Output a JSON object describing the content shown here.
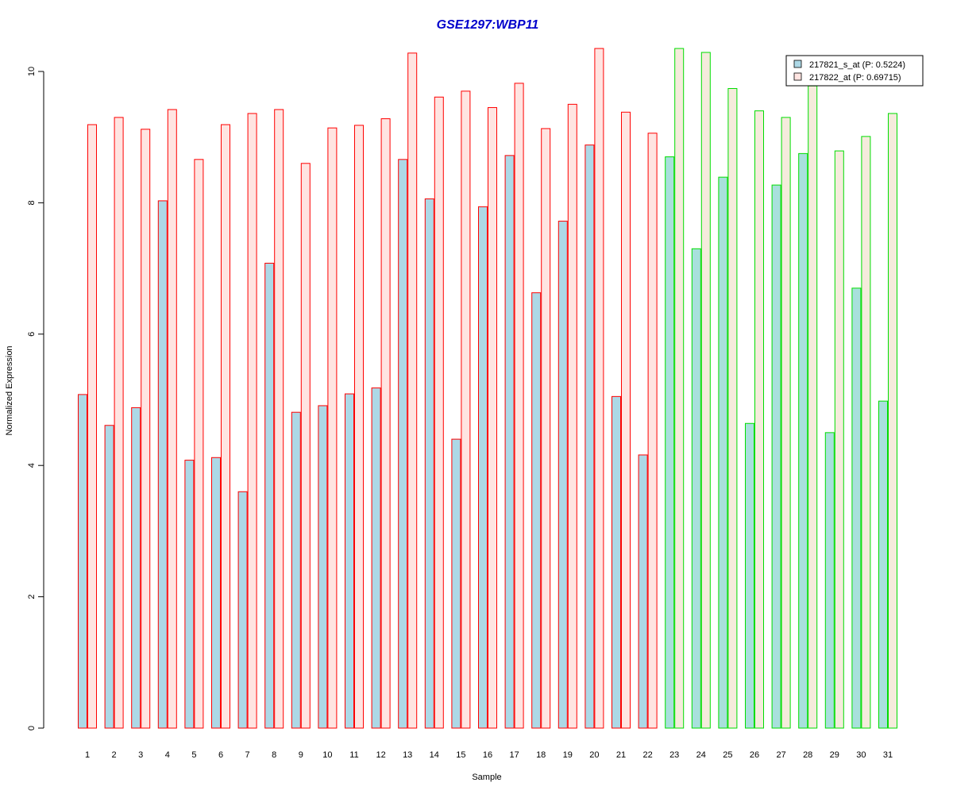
{
  "chart_data": {
    "type": "bar",
    "title": "GSE1297:WBP11",
    "xlabel": "Sample",
    "ylabel": "Normalized Expression",
    "ylim": [
      0,
      10.4
    ],
    "yticks": [
      0,
      2,
      4,
      6,
      8,
      10
    ],
    "categories": [
      "1",
      "2",
      "3",
      "4",
      "5",
      "6",
      "7",
      "8",
      "9",
      "10",
      "11",
      "12",
      "13",
      "14",
      "15",
      "16",
      "17",
      "18",
      "19",
      "20",
      "21",
      "22",
      "23",
      "24",
      "25",
      "26",
      "27",
      "28",
      "29",
      "30",
      "31"
    ],
    "group_of_category": [
      "red",
      "red",
      "red",
      "red",
      "red",
      "red",
      "red",
      "red",
      "red",
      "red",
      "red",
      "red",
      "red",
      "red",
      "red",
      "red",
      "red",
      "red",
      "red",
      "red",
      "red",
      "red",
      "green",
      "green",
      "green",
      "green",
      "green",
      "green",
      "green",
      "green",
      "green"
    ],
    "series": [
      {
        "name": "217821_s_at (P: 0.5224)",
        "values": [
          5.08,
          4.61,
          4.88,
          8.03,
          4.08,
          4.12,
          3.6,
          7.08,
          4.81,
          4.91,
          5.09,
          5.18,
          8.66,
          8.06,
          4.4,
          7.94,
          8.72,
          6.63,
          7.72,
          8.88,
          5.05,
          4.16,
          8.7,
          7.3,
          8.39,
          4.64,
          8.27,
          8.75,
          4.5,
          6.7,
          4.98
        ]
      },
      {
        "name": "217822_at (P: 0.69715)",
        "values": [
          9.19,
          9.3,
          9.12,
          9.42,
          8.66,
          9.19,
          9.36,
          9.42,
          8.6,
          9.14,
          9.18,
          9.28,
          10.28,
          9.61,
          9.7,
          9.45,
          9.82,
          9.13,
          9.5,
          10.35,
          9.38,
          9.06,
          10.35,
          10.29,
          9.74,
          9.4,
          9.3,
          9.78,
          8.79,
          9.01,
          9.36
        ]
      }
    ],
    "colors": {
      "title": "#0000cc",
      "series1_fill": "#add8e6",
      "series2_fill": "#ffe4e1",
      "series2_fill_green": "#f5ebdc",
      "series1_fill_green": "#a8e0dc",
      "border_red": "#ff0000",
      "border_green": "#00dd00"
    },
    "legend": {
      "position": "top-right"
    },
    "grid": false
  }
}
